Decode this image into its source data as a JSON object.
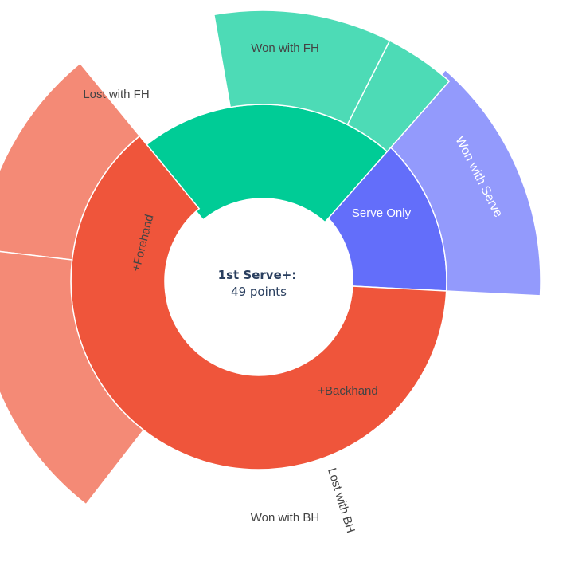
{
  "chart_data": {
    "type": "sunburst",
    "center": {
      "title": "1st Serve+:",
      "subtitle": "49 points"
    },
    "total": 49,
    "inner": [
      {
        "id": "serve-only",
        "label": "Serve Only",
        "value": 7,
        "color": "#636efa",
        "text_color": "#ffffff"
      },
      {
        "id": "backhand",
        "label": "+Backhand",
        "value": 11,
        "color": "#00cc96",
        "text_color": "#444444"
      },
      {
        "id": "forehand",
        "label": "+Forehand",
        "value": 31,
        "color": "#ef553b",
        "text_color": "#444444"
      }
    ],
    "outer": [
      {
        "id": "won-with-serve",
        "parent": "serve-only",
        "label": "Won with Serve",
        "value": 7,
        "color": "#939afc",
        "text_color": "#ffffff"
      },
      {
        "id": "lost-with-bh",
        "parent": "backhand",
        "label": "Lost with BH",
        "value": 2,
        "color": "#4ddbb6",
        "text_color": "#444444"
      },
      {
        "id": "won-with-bh",
        "parent": "backhand",
        "label": "Won with BH",
        "value": 5,
        "color": "#4ddbb6",
        "text_color": "#444444"
      },
      {
        "id": "lost-with-fh",
        "parent": "forehand",
        "label": "Lost with FH",
        "value": 6,
        "color": "#f48a76",
        "text_color": "#444444"
      },
      {
        "id": "won-with-fh",
        "parent": "forehand",
        "label": "Won with FH",
        "value": 8,
        "color": "#f48a76",
        "text_color": "#444444"
      }
    ]
  }
}
